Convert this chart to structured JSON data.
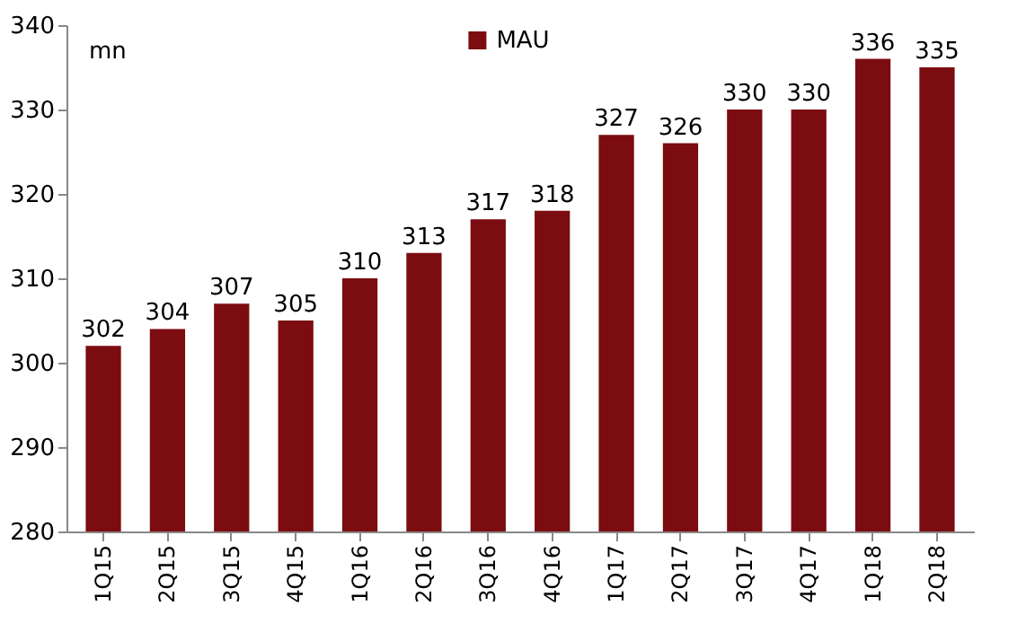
{
  "chart_data": {
    "type": "bar",
    "ylabel": "mn",
    "categories": [
      "1Q15",
      "2Q15",
      "3Q15",
      "4Q15",
      "1Q16",
      "2Q16",
      "3Q16",
      "4Q16",
      "1Q17",
      "2Q17",
      "3Q17",
      "4Q17",
      "1Q18",
      "2Q18"
    ],
    "series": [
      {
        "name": "MAU",
        "color": "#7b0c10",
        "values": [
          302,
          304,
          307,
          305,
          310,
          313,
          317,
          318,
          327,
          326,
          330,
          330,
          336,
          335
        ]
      }
    ],
    "ylim": [
      280,
      340
    ],
    "yticks": [
      280,
      290,
      300,
      310,
      320,
      330,
      340
    ],
    "grid": false,
    "legend": "top",
    "data_labels": true
  }
}
